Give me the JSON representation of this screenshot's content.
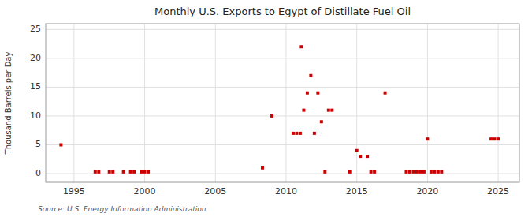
{
  "chart_data": {
    "type": "scatter",
    "title": "Monthly U.S. Exports to Egypt of Distillate Fuel Oil",
    "ylabel": "Thousand Barrels per Day",
    "annotations": [
      "Source: U.S. Energy Information Administration"
    ],
    "xlim": [
      1993.0,
      2026.5
    ],
    "ylim": [
      -1.5,
      26
    ],
    "xticks": [
      1995,
      2000,
      2005,
      2010,
      2015,
      2020,
      2025
    ],
    "yticks": [
      0,
      5,
      10,
      15,
      20,
      25
    ],
    "grid": true,
    "color": "#cc0000",
    "marker": "square",
    "x": [
      1994.08,
      1996.5,
      1996.75,
      1997.5,
      1997.75,
      1998.5,
      1999.0,
      1999.25,
      1999.75,
      2000.0,
      2000.25,
      2008.33,
      2009.0,
      2010.5,
      2010.75,
      2011.0,
      2011.08,
      2011.25,
      2011.5,
      2011.75,
      2012.0,
      2012.25,
      2012.5,
      2012.75,
      2013.0,
      2013.25,
      2014.5,
      2015.0,
      2015.25,
      2015.75,
      2016.0,
      2016.25,
      2017.0,
      2018.5,
      2018.75,
      2019.0,
      2019.25,
      2019.5,
      2019.75,
      2020.0,
      2020.25,
      2020.5,
      2020.75,
      2021.0,
      2024.5,
      2024.75,
      2025.0
    ],
    "values": [
      5,
      0.3,
      0.3,
      0.3,
      0.3,
      0.3,
      0.3,
      0.3,
      0.3,
      0.3,
      0.3,
      1,
      10,
      7,
      7,
      7,
      22,
      11,
      14,
      17,
      7,
      14,
      9,
      0.3,
      11,
      11,
      0.3,
      4,
      3,
      3,
      0.3,
      0.3,
      14,
      0.3,
      0.3,
      0.3,
      0.3,
      0.3,
      0.3,
      6,
      0.3,
      0.3,
      0.3,
      0.3,
      6,
      6,
      6
    ]
  }
}
